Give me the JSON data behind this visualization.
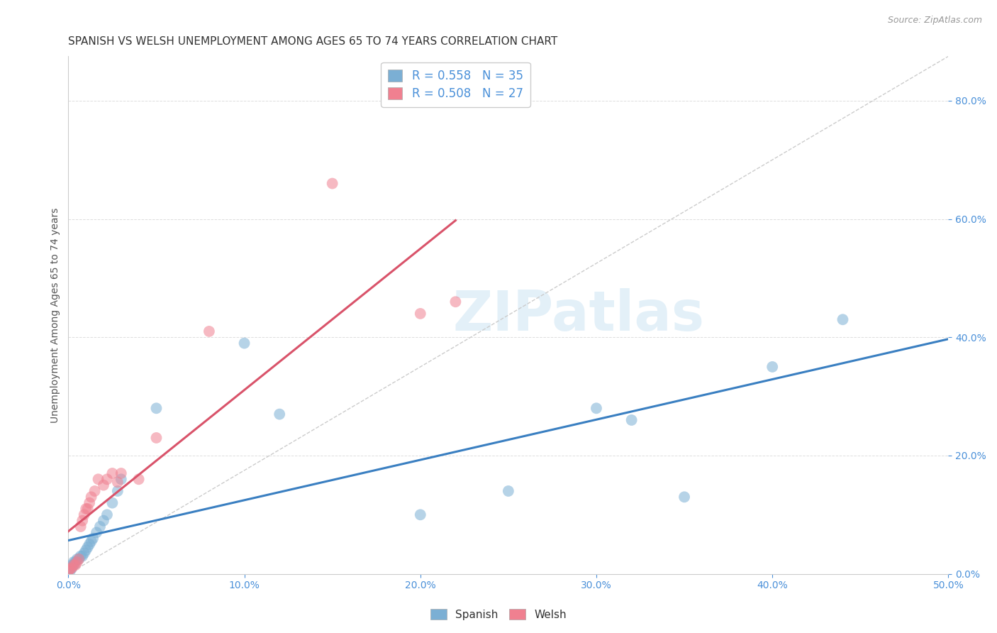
{
  "title": "SPANISH VS WELSH UNEMPLOYMENT AMONG AGES 65 TO 74 YEARS CORRELATION CHART",
  "source": "Source: ZipAtlas.com",
  "xlim": [
    0.0,
    0.5
  ],
  "ylim": [
    0.0,
    0.875
  ],
  "watermark": "ZIPatlas",
  "spanish_x": [
    0.0,
    0.001,
    0.001,
    0.002,
    0.002,
    0.003,
    0.003,
    0.004,
    0.005,
    0.006,
    0.007,
    0.008,
    0.009,
    0.01,
    0.011,
    0.012,
    0.013,
    0.014,
    0.016,
    0.018,
    0.02,
    0.022,
    0.025,
    0.028,
    0.03,
    0.05,
    0.1,
    0.12,
    0.2,
    0.25,
    0.3,
    0.32,
    0.35,
    0.4,
    0.44
  ],
  "spanish_y": [
    0.005,
    0.005,
    0.01,
    0.01,
    0.015,
    0.015,
    0.02,
    0.02,
    0.025,
    0.025,
    0.03,
    0.03,
    0.035,
    0.04,
    0.045,
    0.05,
    0.055,
    0.06,
    0.07,
    0.08,
    0.09,
    0.1,
    0.12,
    0.14,
    0.16,
    0.28,
    0.39,
    0.27,
    0.1,
    0.14,
    0.28,
    0.26,
    0.13,
    0.35,
    0.43
  ],
  "welsh_x": [
    0.0,
    0.001,
    0.002,
    0.003,
    0.004,
    0.005,
    0.006,
    0.007,
    0.008,
    0.009,
    0.01,
    0.011,
    0.012,
    0.013,
    0.015,
    0.017,
    0.02,
    0.022,
    0.025,
    0.028,
    0.03,
    0.04,
    0.05,
    0.08,
    0.15,
    0.2,
    0.22
  ],
  "welsh_y": [
    0.005,
    0.008,
    0.01,
    0.015,
    0.015,
    0.02,
    0.025,
    0.08,
    0.09,
    0.1,
    0.11,
    0.11,
    0.12,
    0.13,
    0.14,
    0.16,
    0.15,
    0.16,
    0.17,
    0.155,
    0.17,
    0.16,
    0.23,
    0.41,
    0.66,
    0.44,
    0.46
  ],
  "spanish_color": "#7bafd4",
  "welsh_color": "#f08090",
  "trendline_spanish_color": "#3a7fc1",
  "trendline_welsh_color": "#d9536a",
  "diagonal_color": "#cccccc",
  "background_color": "#ffffff",
  "title_fontsize": 11,
  "axis_label_fontsize": 10,
  "tick_fontsize": 10,
  "legend_fontsize": 12,
  "ytick_positions": [
    0.0,
    0.2,
    0.4,
    0.6,
    0.8
  ],
  "xtick_positions": [
    0.0,
    0.1,
    0.2,
    0.3,
    0.4,
    0.5
  ]
}
